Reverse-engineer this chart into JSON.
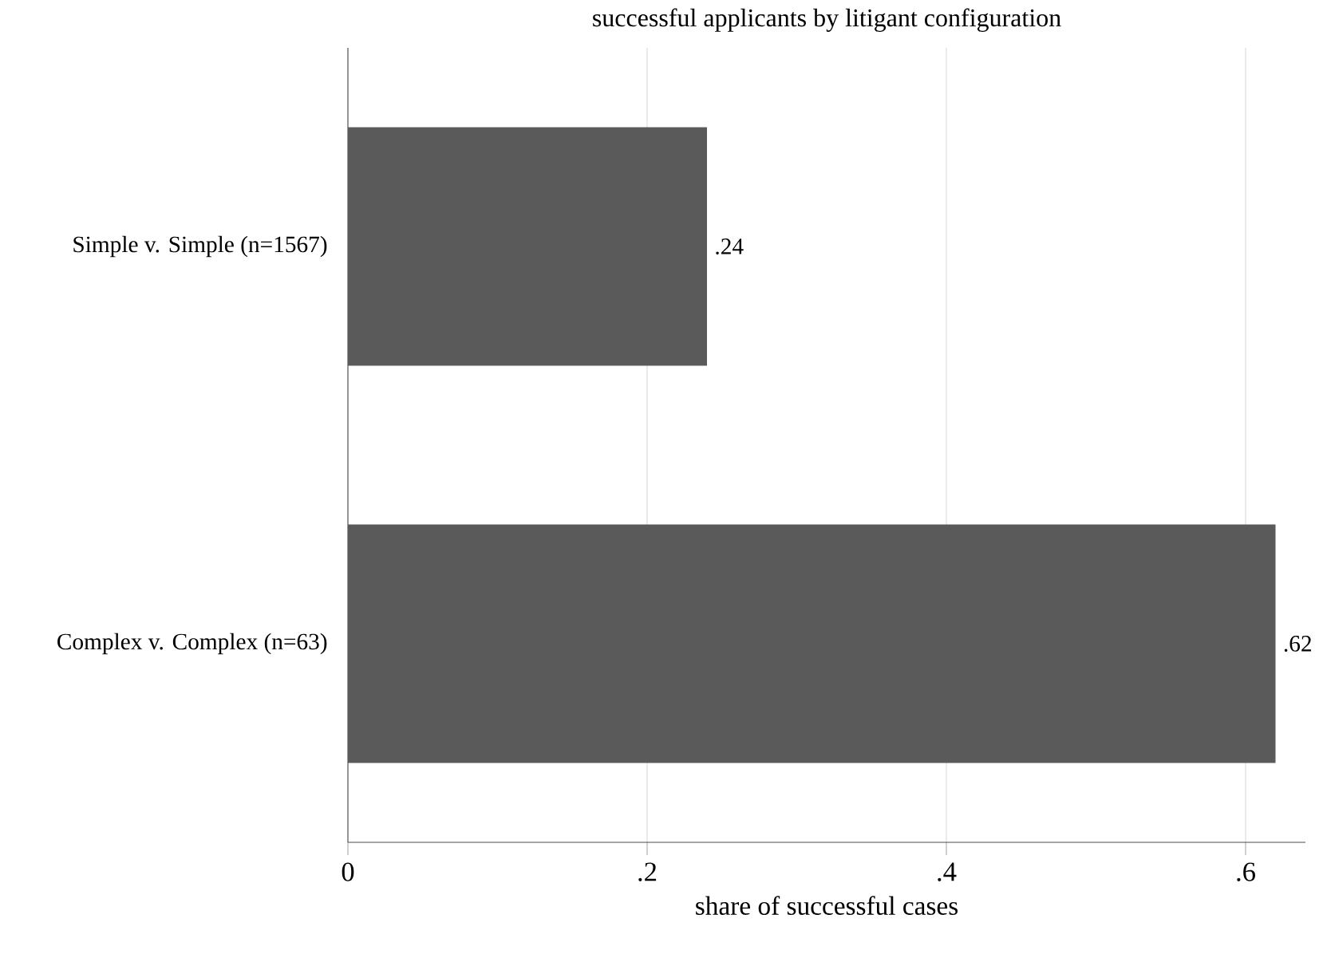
{
  "chart_data": {
    "type": "bar",
    "orientation": "horizontal",
    "title": "successful applicants by litigant configuration",
    "xlabel": "share of successful cases",
    "categories": [
      "Simple v. Simple (n=1567)",
      "Complex v. Complex (n=63)"
    ],
    "values": [
      0.24,
      0.62
    ],
    "color": "#5a5a5a",
    "value_labels": [
      ".24",
      ".62"
    ],
    "xlim": [
      0,
      0.64
    ],
    "xticks": [
      {
        "value": 0,
        "label": "0"
      },
      {
        "value": 0.2,
        "label": ".2"
      },
      {
        "value": 0.4,
        "label": ".4"
      },
      {
        "value": 0.6,
        "label": ".6"
      }
    ],
    "grid": "x"
  }
}
